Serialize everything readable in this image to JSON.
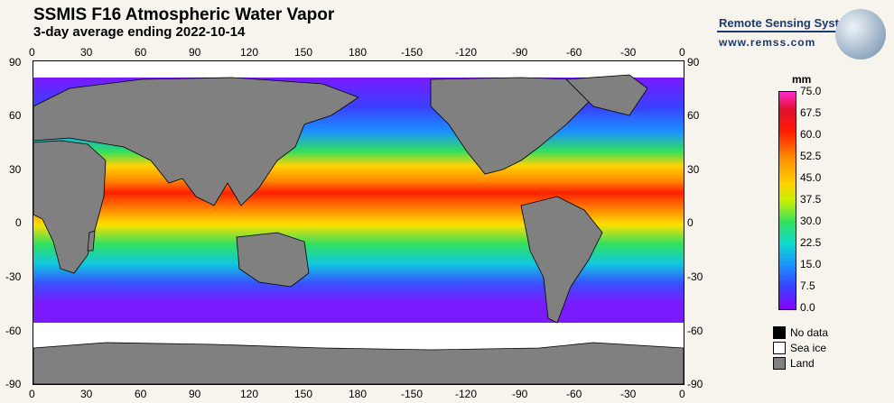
{
  "title": "SSMIS F16 Atmospheric Water Vapor",
  "subtitle": "3-day average ending 2022-10-14",
  "logo": {
    "name": "Remote Sensing Systems",
    "url": "www.remss.com"
  },
  "lon_ticks": [
    "0",
    "30",
    "60",
    "90",
    "120",
    "150",
    "180",
    "-150",
    "-120",
    "-90",
    "-60",
    "-30",
    "0"
  ],
  "lat_ticks": [
    "90",
    "60",
    "30",
    "0",
    "-30",
    "-60",
    "-90"
  ],
  "colorbar": {
    "unit": "mm",
    "labels": [
      "75.0",
      "67.5",
      "60.0",
      "52.5",
      "45.0",
      "37.5",
      "30.0",
      "22.5",
      "15.0",
      "7.5",
      "0.0"
    ]
  },
  "legend": {
    "no_data": {
      "label": "No data",
      "color": "#000000"
    },
    "sea_ice": {
      "label": "Sea ice",
      "color": "#ffffff"
    },
    "land": {
      "label": "Land",
      "color": "#808080"
    }
  }
}
